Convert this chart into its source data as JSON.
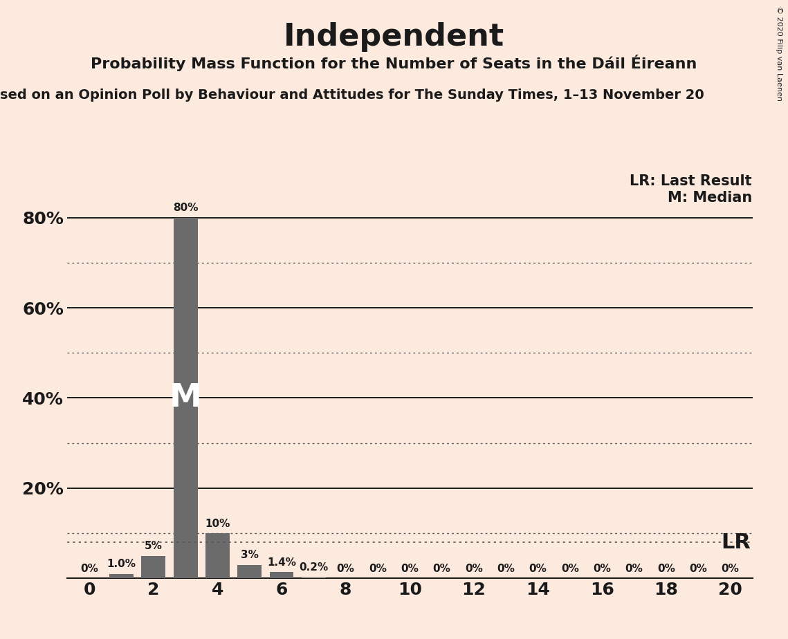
{
  "title": "Independent",
  "subtitle": "Probability Mass Function for the Number of Seats in the Dáil Éireann",
  "source_line": "sed on an Opinion Poll by Behaviour and Attitudes for The Sunday Times, 1–13 November 20",
  "copyright": "© 2020 Filip van Laenen",
  "background_color": "#fdeadf",
  "bar_color": "#6b6b6b",
  "seats": [
    0,
    1,
    2,
    3,
    4,
    5,
    6,
    7,
    8,
    9,
    10,
    11,
    12,
    13,
    14,
    15,
    16,
    17,
    18,
    19,
    20
  ],
  "probabilities": [
    0.0,
    1.0,
    5.0,
    80.0,
    10.0,
    3.0,
    1.4,
    0.2,
    0.0,
    0.0,
    0.0,
    0.0,
    0.0,
    0.0,
    0.0,
    0.0,
    0.0,
    0.0,
    0.0,
    0.0,
    0.0
  ],
  "labels": [
    "0%",
    "1.0%",
    "5%",
    "80%",
    "10%",
    "3%",
    "1.4%",
    "0.2%",
    "0%",
    "0%",
    "0%",
    "0%",
    "0%",
    "0%",
    "0%",
    "0%",
    "0%",
    "0%",
    "0%",
    "0%",
    "0%"
  ],
  "median": 3,
  "lr_value": 8.0,
  "ylim": [
    0,
    90
  ],
  "yticks": [
    0,
    20,
    40,
    60,
    80
  ],
  "ytick_labels": [
    "",
    "20%",
    "40%",
    "60%",
    "80%"
  ],
  "xticks": [
    0,
    2,
    4,
    6,
    8,
    10,
    12,
    14,
    16,
    18,
    20
  ],
  "solid_gridlines": [
    20,
    40,
    60,
    80
  ],
  "dotted_gridlines": [
    10,
    30,
    50,
    70
  ],
  "lr_dotted_line": 8.0,
  "text_color": "#1a1a1a",
  "grid_solid_color": "#1a1a1a",
  "grid_dotted_color": "#555555",
  "title_fontsize": 32,
  "subtitle_fontsize": 16,
  "source_fontsize": 14,
  "legend_fontsize": 15,
  "tick_fontsize": 18,
  "label_fontsize": 11,
  "M_fontsize": 34,
  "LR_label_fontsize": 22,
  "bar_width": 0.75,
  "xlim_left": -0.7,
  "xlim_right": 20.7
}
